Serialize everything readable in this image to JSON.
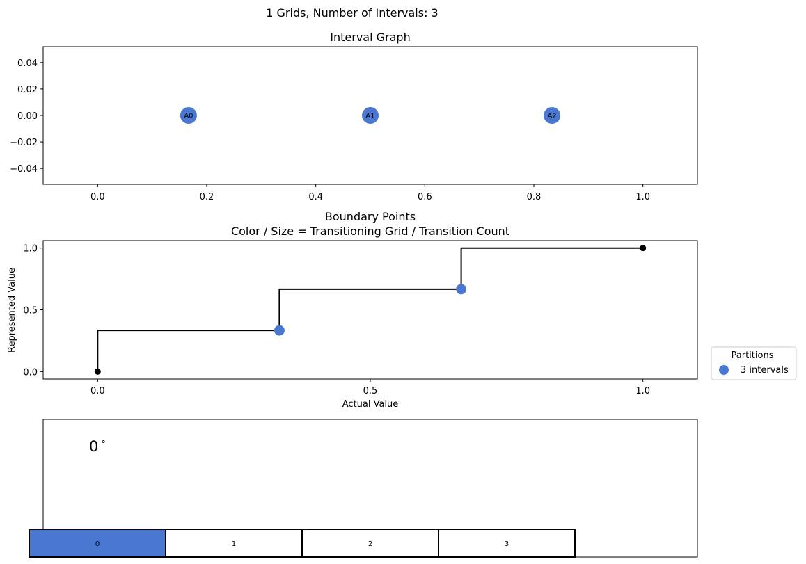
{
  "figure": {
    "suptitle": "1 Grids, Number of Intervals: 3"
  },
  "colors": {
    "accent": "#4a78d0",
    "marker_black": "#000000",
    "line": "#000000",
    "frame": "#000000"
  },
  "chart_data": [
    {
      "type": "scatter",
      "title": "Interval Graph",
      "xlabel": "",
      "ylabel": "",
      "xlim": [
        -0.1,
        1.1
      ],
      "ylim": [
        -0.052,
        0.052
      ],
      "xticks": [
        0.0,
        0.2,
        0.4,
        0.6,
        0.8,
        1.0
      ],
      "xtick_labels": [
        "0.0",
        "0.2",
        "0.4",
        "0.6",
        "0.8",
        "1.0"
      ],
      "yticks": [
        0.04,
        0.02,
        0.0,
        -0.02,
        -0.04
      ],
      "ytick_labels": [
        "0.04",
        "0.02",
        "0.00",
        "−0.02",
        "−0.04"
      ],
      "grid": false,
      "points": [
        {
          "label": "A0",
          "x": 0.1667,
          "y": 0.0
        },
        {
          "label": "A1",
          "x": 0.5,
          "y": 0.0
        },
        {
          "label": "A2",
          "x": 0.8333,
          "y": 0.0
        }
      ]
    },
    {
      "type": "line",
      "title": "Boundary Points\nColor / Size = Transitioning Grid / Transition Count",
      "title_lines": [
        "Boundary Points",
        "Color / Size = Transitioning Grid / Transition Count"
      ],
      "xlabel": "Actual Value",
      "ylabel": "Represented Value",
      "xlim": [
        -0.1,
        1.1
      ],
      "ylim": [
        -0.06,
        1.06
      ],
      "xticks": [
        0.0,
        0.5,
        1.0
      ],
      "xtick_labels": [
        "0.0",
        "0.5",
        "1.0"
      ],
      "yticks": [
        1.0,
        0.5,
        0.0
      ],
      "ytick_labels": [
        "1.0",
        "0.5",
        "0.0"
      ],
      "grid": false,
      "step": {
        "x": [
          0.0,
          0.0,
          0.3333,
          0.3333,
          0.6667,
          0.6667,
          1.0
        ],
        "y": [
          0.0,
          0.3333,
          0.3333,
          0.6667,
          0.6667,
          1.0,
          1.0
        ]
      },
      "endpoints": [
        {
          "x": 0.0,
          "y": 0.0
        },
        {
          "x": 1.0,
          "y": 1.0
        }
      ],
      "boundary_points": [
        {
          "x": 0.3333,
          "y": 0.3333
        },
        {
          "x": 0.6667,
          "y": 0.6667
        }
      ],
      "legend": {
        "title": "Partitions",
        "placement": "outside-right",
        "entries": [
          {
            "label": "3 intervals"
          }
        ]
      }
    },
    {
      "type": "table",
      "annotation": "0",
      "annotation_unit": "°",
      "cells": [
        {
          "label": "0",
          "active": true
        },
        {
          "label": "1",
          "active": false
        },
        {
          "label": "2",
          "active": false
        },
        {
          "label": "3",
          "active": false
        }
      ]
    }
  ]
}
